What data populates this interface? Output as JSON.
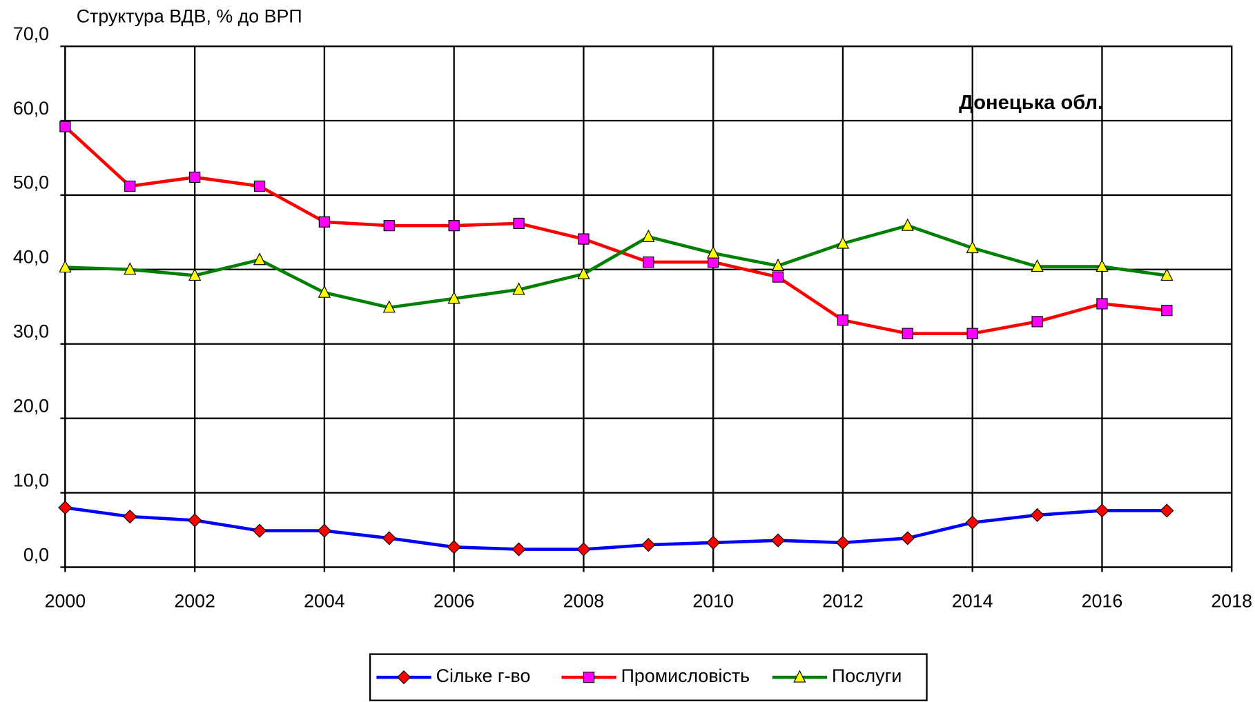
{
  "chart_data": {
    "type": "line",
    "title": "Структура ВДВ, % до ВРП",
    "annotation": "Донецька обл.",
    "x": [
      2000,
      2001,
      2002,
      2003,
      2004,
      2005,
      2006,
      2007,
      2008,
      2009,
      2010,
      2011,
      2012,
      2013,
      2014,
      2015,
      2016,
      2017
    ],
    "series": [
      {
        "name": "Сільке г-во",
        "color": "#0000ff",
        "marker": "diamond",
        "marker_color": "#ff0000",
        "values": [
          8.0,
          6.8,
          6.3,
          4.9,
          4.9,
          3.9,
          2.7,
          2.4,
          2.4,
          3.0,
          3.3,
          3.6,
          3.3,
          3.9,
          6.0,
          7.0,
          7.6,
          7.6
        ]
      },
      {
        "name": "Промисловість",
        "color": "#ff0000",
        "marker": "square",
        "marker_color": "#ff00ff",
        "values": [
          59.2,
          51.2,
          52.4,
          51.2,
          46.4,
          45.9,
          45.9,
          46.2,
          44.1,
          41.0,
          41.0,
          39.0,
          33.2,
          31.4,
          31.4,
          33.0,
          35.4,
          34.5
        ]
      },
      {
        "name": "Послуги",
        "color": "#008000",
        "marker": "triangle",
        "marker_color": "#ffff00",
        "values": [
          40.3,
          40.0,
          39.2,
          41.3,
          36.9,
          34.9,
          36.1,
          37.3,
          39.4,
          44.4,
          42.2,
          40.5,
          43.5,
          45.9,
          42.9,
          40.4,
          40.4,
          39.2
        ]
      }
    ],
    "xlim": [
      2000,
      2018
    ],
    "xticks": [
      2000,
      2002,
      2004,
      2006,
      2008,
      2010,
      2012,
      2014,
      2016,
      2018
    ],
    "ylim": [
      0,
      70
    ],
    "yticks": [
      {
        "value": 0,
        "label": "0,0"
      },
      {
        "value": 10,
        "label": "10,0"
      },
      {
        "value": 20,
        "label": "20,0"
      },
      {
        "value": 30,
        "label": "30,0"
      },
      {
        "value": 40,
        "label": "40,0"
      },
      {
        "value": 50,
        "label": "50,0"
      },
      {
        "value": 60,
        "label": "60,0"
      },
      {
        "value": 70,
        "label": "70,0"
      }
    ],
    "grid": true,
    "legend": "bottom"
  }
}
